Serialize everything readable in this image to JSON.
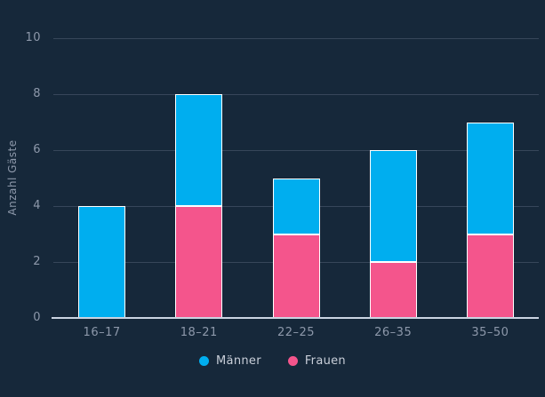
{
  "page": {
    "background_color": "#16283a"
  },
  "chart_data": {
    "type": "bar",
    "stacked": true,
    "title": "",
    "categories": [
      "16–17",
      "18–21",
      "22–25",
      "26–35",
      "35–50"
    ],
    "series": [
      {
        "name": "Männer",
        "color": "#00aeef",
        "values": [
          4,
          4,
          2,
          4,
          4
        ]
      },
      {
        "name": "Frauen",
        "color": "#f4558c",
        "values": [
          0,
          4,
          3,
          2,
          3
        ]
      }
    ],
    "stack_order_bottom_to_top": [
      "Frauen",
      "Männer"
    ],
    "xlabel": "",
    "ylabel": "Anzahl Gäste",
    "ylim": [
      0,
      10
    ],
    "yticks": [
      0,
      2,
      4,
      6,
      8,
      10
    ],
    "grid": true,
    "legend_position": "bottom",
    "colors": {
      "bar_border": "#ffffff",
      "axis_line": "#cbd4e2",
      "grid_line": "#37465a",
      "tick_label": "#8d98aa",
      "axis_title": "#8d98aa",
      "legend_text": "#c9cfd9"
    }
  }
}
